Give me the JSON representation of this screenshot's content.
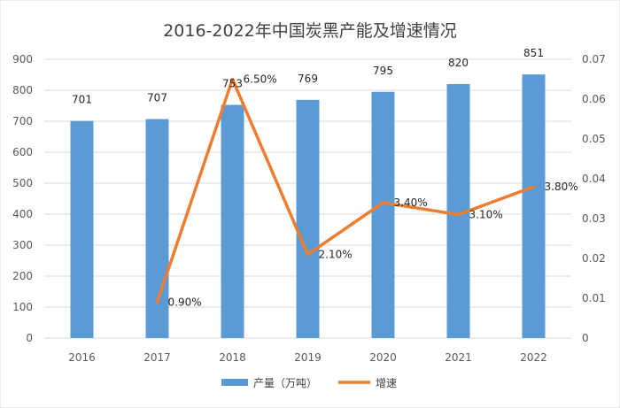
{
  "chart_data": {
    "type": "bar+line",
    "title": "2016-2022年中国炭黑产能及增速情况",
    "categories": [
      "2016",
      "2017",
      "2018",
      "2019",
      "2020",
      "2021",
      "2022"
    ],
    "series": [
      {
        "name": "产量（万吨）",
        "type": "bar",
        "axis": "left",
        "color": "#5b9bd5",
        "values": [
          701,
          707,
          753,
          769,
          795,
          820,
          851
        ],
        "labels": [
          "701",
          "707",
          "753",
          "769",
          "795",
          "820",
          "851"
        ]
      },
      {
        "name": "增速",
        "type": "line",
        "axis": "right",
        "color": "#ed7d31",
        "values": [
          null,
          0.009,
          0.065,
          0.021,
          0.034,
          0.031,
          0.038
        ],
        "labels": [
          null,
          "0.90%",
          "6.50%",
          "2.10%",
          "3.40%",
          "3.10%",
          "3.80%"
        ]
      }
    ],
    "y_left": {
      "min": 0,
      "max": 900,
      "step": 100,
      "ticks": [
        "0",
        "100",
        "200",
        "300",
        "400",
        "500",
        "600",
        "700",
        "800",
        "900"
      ]
    },
    "y_right": {
      "min": 0,
      "max": 0.07,
      "step": 0.01,
      "ticks": [
        "0",
        "0.01",
        "0.02",
        "0.03",
        "0.04",
        "0.05",
        "0.06",
        "0.07"
      ]
    },
    "grid": true,
    "legend": "bottom-center"
  }
}
